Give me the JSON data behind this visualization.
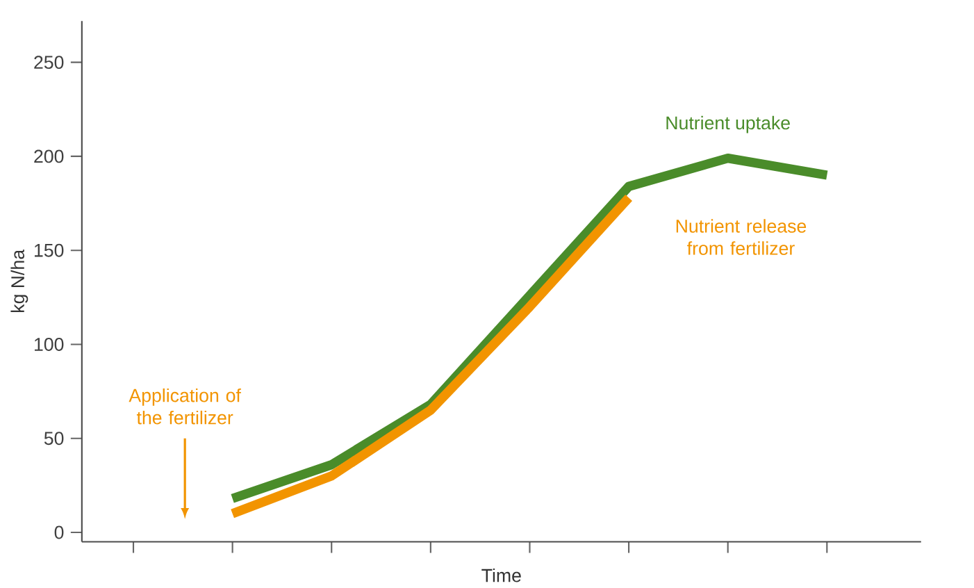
{
  "chart_data": {
    "type": "line",
    "xlabel": "Time",
    "ylabel": "kg N/ha",
    "categories": [
      null,
      null,
      null,
      null,
      null,
      null,
      null,
      null
    ],
    "ylim": [
      -5,
      272
    ],
    "yticks": [
      0,
      50,
      100,
      150,
      200,
      250
    ],
    "marker": "none",
    "series": [
      {
        "name": "Nutrient uptake",
        "color": "#4a8c2a",
        "values": [
          null,
          18,
          36,
          68,
          126,
          184,
          199,
          190
        ]
      },
      {
        "name": "Nutrient release from fertilizer",
        "color": "#f29400",
        "values": [
          null,
          10,
          30,
          65,
          120,
          178,
          null,
          null
        ]
      }
    ],
    "annotations": [
      "Application of the fertilizer"
    ]
  }
}
